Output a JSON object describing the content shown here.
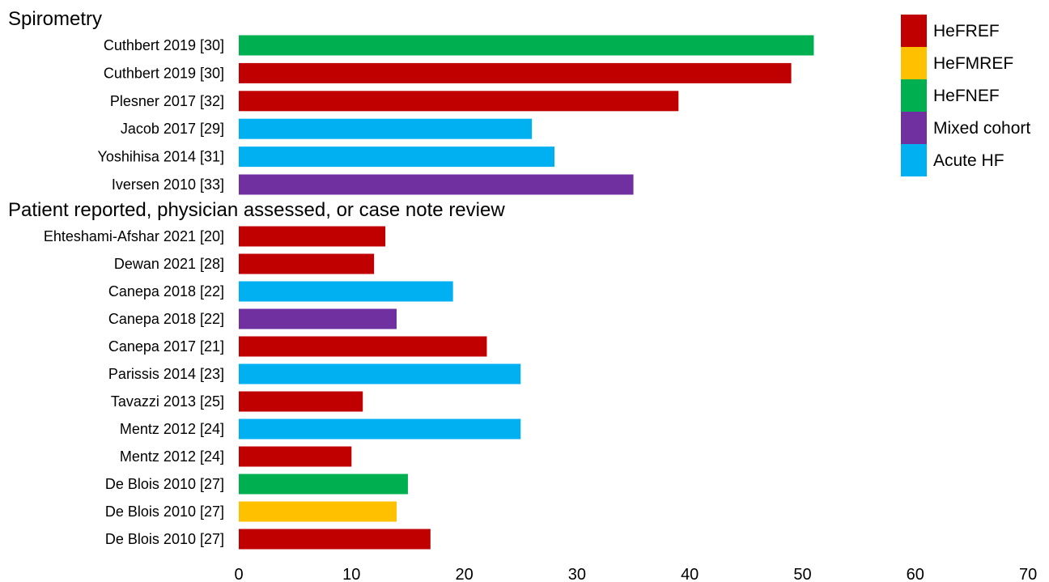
{
  "chart_data": {
    "type": "bar",
    "orientation": "horizontal",
    "xlim": [
      0,
      70
    ],
    "xticks": [
      "0",
      "10",
      "20",
      "30",
      "40",
      "50",
      "60",
      "70"
    ],
    "grid": false,
    "legend_position": "top-right",
    "legend": [
      {
        "name": "HeFREF",
        "color": "#C00000"
      },
      {
        "name": "HeFMREF",
        "color": "#FFC000"
      },
      {
        "name": "HeFNEF",
        "color": "#00B050"
      },
      {
        "name": "Mixed cohort",
        "color": "#7030A0"
      },
      {
        "name": "Acute HF",
        "color": "#00B0F0"
      }
    ],
    "groups": [
      {
        "title": "Spirometry",
        "bars": [
          {
            "label": "Cuthbert 2019 [30]",
            "value": 51,
            "type": "HeFNEF"
          },
          {
            "label": "Cuthbert 2019 [30]",
            "value": 49,
            "type": "HeFREF"
          },
          {
            "label": "Plesner 2017 [32]",
            "value": 39,
            "type": "HeFREF"
          },
          {
            "label": "Jacob 2017 [29]",
            "value": 26,
            "type": "Acute HF"
          },
          {
            "label": "Yoshihisa 2014 [31]",
            "value": 28,
            "type": "Acute HF"
          },
          {
            "label": "Iversen 2010 [33]",
            "value": 35,
            "type": "Mixed cohort"
          }
        ]
      },
      {
        "title": "Patient reported, physician assessed, or case note review",
        "bars": [
          {
            "label": "Ehteshami-Afshar 2021 [20]",
            "value": 13,
            "type": "HeFREF"
          },
          {
            "label": "Dewan 2021 [28]",
            "value": 12,
            "type": "HeFREF"
          },
          {
            "label": "Canepa 2018 [22]",
            "value": 19,
            "type": "Acute HF"
          },
          {
            "label": "Canepa 2018 [22]",
            "value": 14,
            "type": "Mixed cohort"
          },
          {
            "label": "Canepa 2017 [21]",
            "value": 22,
            "type": "HeFREF"
          },
          {
            "label": "Parissis 2014 [23]",
            "value": 25,
            "type": "Acute HF"
          },
          {
            "label": "Tavazzi 2013 [25]",
            "value": 11,
            "type": "HeFREF"
          },
          {
            "label": "Mentz 2012 [24]",
            "value": 25,
            "type": "Acute HF"
          },
          {
            "label": "Mentz 2012 [24]",
            "value": 10,
            "type": "HeFREF"
          },
          {
            "label": "De Blois 2010 [27]",
            "value": 15,
            "type": "HeFNEF"
          },
          {
            "label": "De Blois 2010 [27]",
            "value": 14,
            "type": "HeFMREF"
          },
          {
            "label": "De Blois 2010 [27]",
            "value": 17,
            "type": "HeFREF"
          }
        ]
      }
    ]
  }
}
